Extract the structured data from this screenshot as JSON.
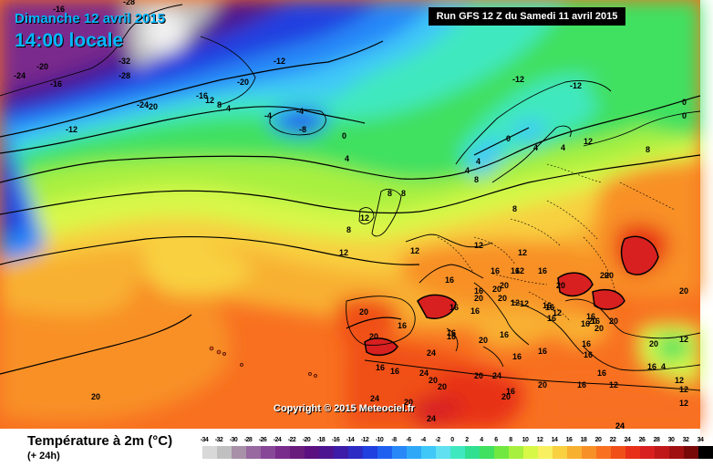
{
  "header": {
    "date": "Dimanche 12 avril 2015",
    "time": "14:00 locale",
    "run": "Run GFS 12 Z du Samedi 11 avril 2015"
  },
  "copyright": "Copyright © 2015 Meteociel.fr",
  "legend": {
    "title": "Température à 2m (°C)",
    "subtitle": "(+ 24h)",
    "steps": [
      {
        "label": "-34",
        "color": "#d8d8d8"
      },
      {
        "label": "-32",
        "color": "#c0c0c0"
      },
      {
        "label": "-30",
        "color": "#a890a8"
      },
      {
        "label": "-28",
        "color": "#9868a0"
      },
      {
        "label": "-26",
        "color": "#884898"
      },
      {
        "label": "-24",
        "color": "#7a2c8c"
      },
      {
        "label": "-22",
        "color": "#6a1c7c"
      },
      {
        "label": "-20",
        "color": "#5a1080"
      },
      {
        "label": "-18",
        "color": "#4c1490"
      },
      {
        "label": "-16",
        "color": "#3c1ca8"
      },
      {
        "label": "-14",
        "color": "#2c2cc4"
      },
      {
        "label": "-12",
        "color": "#2040e0"
      },
      {
        "label": "-10",
        "color": "#2060f0"
      },
      {
        "label": "-8",
        "color": "#2888f8"
      },
      {
        "label": "-6",
        "color": "#30a8f8"
      },
      {
        "label": "-4",
        "color": "#40c8f8"
      },
      {
        "label": "-2",
        "color": "#60e0f0"
      },
      {
        "label": "0",
        "color": "#40e8c0"
      },
      {
        "label": "2",
        "color": "#30e090"
      },
      {
        "label": "4",
        "color": "#40e060"
      },
      {
        "label": "6",
        "color": "#70e840"
      },
      {
        "label": "8",
        "color": "#a8f040"
      },
      {
        "label": "10",
        "color": "#d8f848"
      },
      {
        "label": "12",
        "color": "#f8f060"
      },
      {
        "label": "14",
        "color": "#f8d040"
      },
      {
        "label": "16",
        "color": "#f8b030"
      },
      {
        "label": "18",
        "color": "#f89028"
      },
      {
        "label": "20",
        "color": "#f87020"
      },
      {
        "label": "22",
        "color": "#f05018"
      },
      {
        "label": "24",
        "color": "#e83018"
      },
      {
        "label": "26",
        "color": "#d82020"
      },
      {
        "label": "28",
        "color": "#c01818"
      },
      {
        "label": "30",
        "color": "#a01010"
      },
      {
        "label": "32",
        "color": "#780808"
      },
      {
        "label": "34",
        "color": "#000000"
      }
    ]
  },
  "map_labels": [
    {
      "t": "-16"
    },
    {
      "t": "-28"
    },
    {
      "t": "-24"
    },
    {
      "t": "-20"
    },
    {
      "t": "-16"
    },
    {
      "t": "-32"
    },
    {
      "t": "-12"
    },
    {
      "t": "-28"
    },
    {
      "t": "-20"
    },
    {
      "t": "-24"
    },
    {
      "t": "-20"
    },
    {
      "t": "-12"
    },
    {
      "t": "-16"
    },
    {
      "t": "12"
    },
    {
      "t": "8"
    },
    {
      "t": "4"
    },
    {
      "t": "-4"
    },
    {
      "t": "-4"
    },
    {
      "t": "-8"
    },
    {
      "t": "0"
    },
    {
      "t": "4"
    },
    {
      "t": "-12"
    },
    {
      "t": "-12"
    },
    {
      "t": "0"
    },
    {
      "t": "0"
    },
    {
      "t": "12"
    },
    {
      "t": "8"
    },
    {
      "t": "0"
    },
    {
      "t": "4"
    },
    {
      "t": "4"
    },
    {
      "t": "4"
    },
    {
      "t": "8"
    },
    {
      "t": "8"
    },
    {
      "t": "12"
    },
    {
      "t": "4"
    },
    {
      "t": "8"
    },
    {
      "t": "8"
    },
    {
      "t": "12"
    },
    {
      "t": "8"
    },
    {
      "t": "12"
    },
    {
      "t": "12"
    },
    {
      "t": "12"
    },
    {
      "t": "12"
    },
    {
      "t": "16"
    },
    {
      "t": "16"
    },
    {
      "t": "20"
    },
    {
      "t": "20"
    },
    {
      "t": "16"
    },
    {
      "t": "16"
    },
    {
      "t": "20"
    },
    {
      "t": "20"
    },
    {
      "t": "16"
    },
    {
      "t": "20"
    },
    {
      "t": "20"
    },
    {
      "t": "20"
    },
    {
      "t": "20"
    },
    {
      "t": "16"
    },
    {
      "t": "16"
    },
    {
      "t": "12"
    },
    {
      "t": "16"
    },
    {
      "t": "20"
    },
    {
      "t": "16"
    },
    {
      "t": "16"
    },
    {
      "t": "16"
    },
    {
      "t": "20"
    },
    {
      "t": "16"
    },
    {
      "t": "20"
    },
    {
      "t": "20"
    },
    {
      "t": "16"
    },
    {
      "t": "16"
    },
    {
      "t": "20"
    },
    {
      "t": "24"
    },
    {
      "t": "24"
    },
    {
      "t": "20"
    },
    {
      "t": "16"
    },
    {
      "t": "16"
    },
    {
      "t": "16"
    },
    {
      "t": "16"
    },
    {
      "t": "20"
    },
    {
      "t": "16"
    },
    {
      "t": "12"
    },
    {
      "t": "16"
    },
    {
      "t": "16"
    },
    {
      "t": "16"
    },
    {
      "t": "20"
    },
    {
      "t": "16"
    },
    {
      "t": "20"
    },
    {
      "t": "24"
    },
    {
      "t": "20"
    },
    {
      "t": "24"
    },
    {
      "t": "20"
    },
    {
      "t": "24"
    },
    {
      "t": "12"
    },
    {
      "t": "20"
    },
    {
      "t": "24"
    },
    {
      "t": "20"
    },
    {
      "t": "16"
    },
    {
      "t": "12"
    },
    {
      "t": "12"
    },
    {
      "t": "12"
    },
    {
      "t": "16"
    },
    {
      "t": "16"
    },
    {
      "t": "4"
    },
    {
      "t": "12"
    },
    {
      "t": "12"
    },
    {
      "t": "16"
    },
    {
      "t": "20"
    },
    {
      "t": "16"
    },
    {
      "t": "24"
    }
  ]
}
